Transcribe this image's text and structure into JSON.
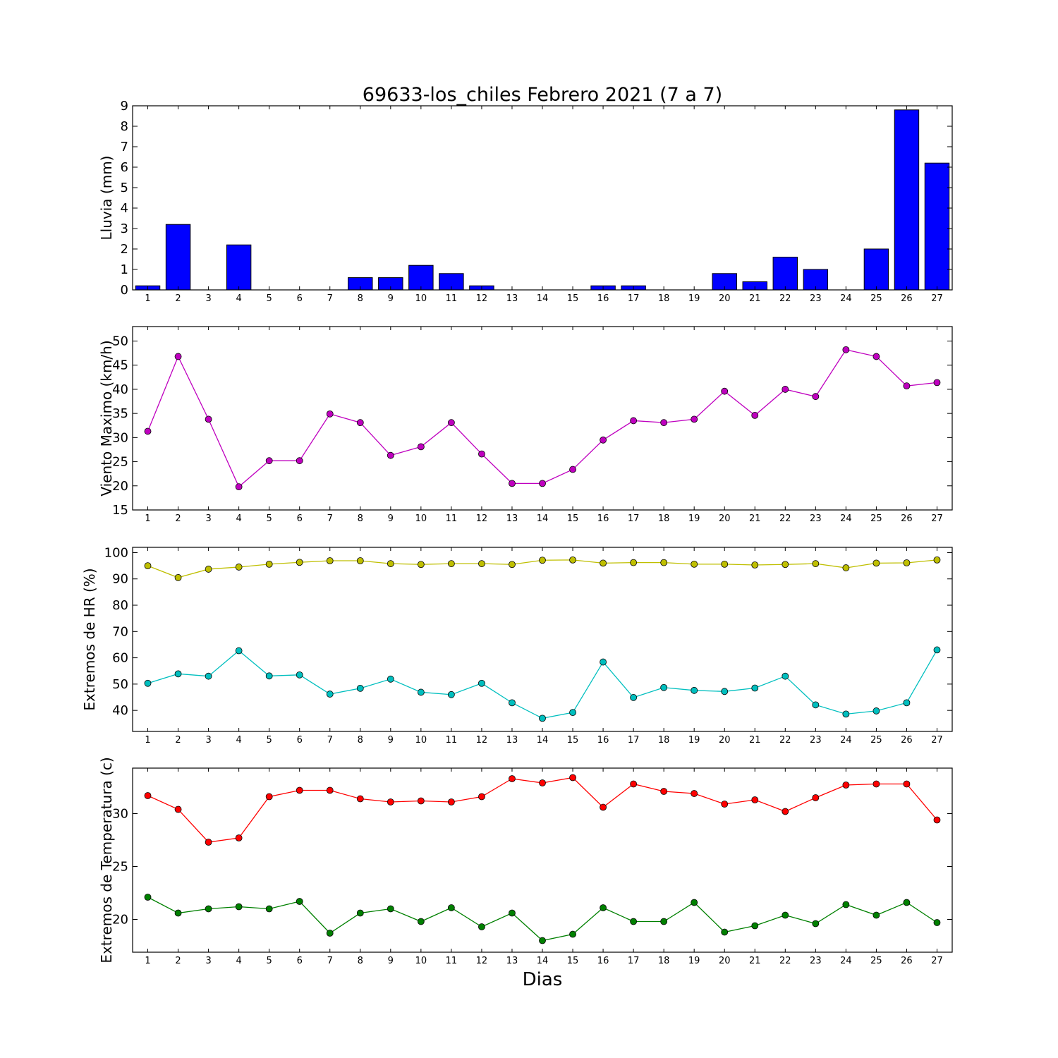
{
  "title": "69633-los_chiles Febrero 2021  (7 a 7)",
  "xlabel": "Dias",
  "chart_data": [
    {
      "type": "bar",
      "ylabel": "Lluvia (mm)",
      "ylim": [
        0,
        9
      ],
      "yticks": [
        0,
        1,
        2,
        3,
        4,
        5,
        6,
        7,
        8,
        9
      ],
      "grid": false,
      "categories": [
        1,
        2,
        3,
        4,
        5,
        6,
        7,
        8,
        9,
        10,
        11,
        12,
        13,
        14,
        15,
        16,
        17,
        18,
        19,
        20,
        21,
        22,
        23,
        24,
        25,
        26,
        27
      ],
      "series": [
        {
          "color": "#0000ff",
          "values": [
            0.2,
            3.2,
            0,
            2.2,
            0,
            0,
            0,
            0.6,
            0.6,
            1.2,
            0.8,
            0.2,
            0,
            0,
            0,
            0.2,
            0.2,
            0,
            0,
            0.8,
            0.4,
            1.6,
            1.0,
            0,
            2.0,
            8.8,
            6.2
          ]
        }
      ]
    },
    {
      "type": "line",
      "ylabel": "Viento Maximo (km/h)",
      "ylim": [
        15,
        53
      ],
      "yticks": [
        15,
        20,
        25,
        30,
        35,
        40,
        45,
        50
      ],
      "grid": false,
      "x": [
        1,
        2,
        3,
        4,
        5,
        6,
        7,
        8,
        9,
        10,
        11,
        12,
        13,
        14,
        15,
        16,
        17,
        18,
        19,
        20,
        21,
        22,
        23,
        24,
        25,
        26,
        27
      ],
      "series": [
        {
          "color": "#bf00bf",
          "values": [
            31.3,
            46.8,
            33.8,
            19.8,
            25.2,
            25.2,
            34.9,
            33.1,
            26.3,
            28.1,
            33.1,
            26.6,
            20.5,
            20.5,
            23.4,
            29.5,
            33.5,
            33.1,
            33.8,
            39.6,
            34.6,
            40.0,
            38.5,
            48.2,
            46.8,
            40.7,
            41.4
          ]
        }
      ]
    },
    {
      "type": "line",
      "ylabel": "Extremos de HR (%)",
      "ylim": [
        32,
        102
      ],
      "yticks": [
        40,
        50,
        60,
        70,
        80,
        90,
        100
      ],
      "grid": false,
      "x": [
        1,
        2,
        3,
        4,
        5,
        6,
        7,
        8,
        9,
        10,
        11,
        12,
        13,
        14,
        15,
        16,
        17,
        18,
        19,
        20,
        21,
        22,
        23,
        24,
        25,
        26,
        27
      ],
      "series": [
        {
          "color": "#bfbf00",
          "values": [
            95,
            90.5,
            93.7,
            94.5,
            95.6,
            96.3,
            96.9,
            96.9,
            95.8,
            95.5,
            95.8,
            95.8,
            95.5,
            97.1,
            97.2,
            96,
            96.2,
            96.2,
            95.6,
            95.6,
            95.3,
            95.5,
            95.8,
            94.2,
            96,
            96.1,
            97.2
          ]
        },
        {
          "color": "#00bfbf",
          "values": [
            50.3,
            53.9,
            53,
            62.7,
            53.1,
            53.5,
            46.2,
            48.4,
            51.9,
            46.9,
            46,
            50.3,
            42.9,
            37,
            39.2,
            58.4,
            44.9,
            48.7,
            47.6,
            47.2,
            48.5,
            53,
            42.1,
            38.6,
            39.8,
            42.9,
            63
          ]
        }
      ]
    },
    {
      "type": "line",
      "ylabel": "Extremos de Temperatura (c)",
      "ylim": [
        16.9,
        34.3
      ],
      "yticks": [
        20,
        25,
        30
      ],
      "grid": false,
      "x": [
        1,
        2,
        3,
        4,
        5,
        6,
        7,
        8,
        9,
        10,
        11,
        12,
        13,
        14,
        15,
        16,
        17,
        18,
        19,
        20,
        21,
        22,
        23,
        24,
        25,
        26,
        27
      ],
      "series": [
        {
          "color": "#ff0000",
          "values": [
            31.7,
            30.4,
            27.3,
            27.7,
            31.6,
            32.2,
            32.2,
            31.4,
            31.1,
            31.2,
            31.1,
            31.6,
            33.3,
            32.9,
            33.4,
            30.6,
            32.8,
            32.1,
            31.9,
            30.9,
            31.3,
            30.2,
            31.5,
            32.7,
            32.8,
            32.8,
            29.4
          ]
        },
        {
          "color": "#008000",
          "values": [
            22.1,
            20.6,
            21,
            21.2,
            21,
            21.7,
            18.7,
            20.6,
            21,
            19.8,
            21.1,
            19.3,
            20.6,
            18,
            18.6,
            21.1,
            19.8,
            19.8,
            21.6,
            18.8,
            19.4,
            20.4,
            19.6,
            21.4,
            20.4,
            21.6,
            19.7
          ]
        }
      ]
    }
  ]
}
